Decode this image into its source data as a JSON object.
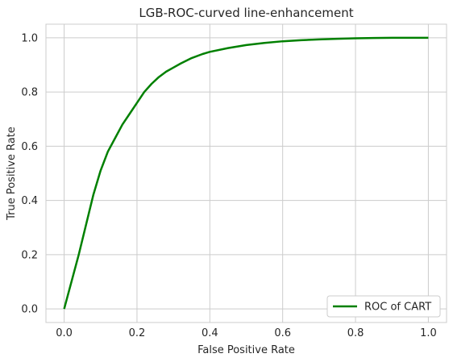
{
  "chart_data": {
    "type": "line",
    "title": "LGB-ROC-curved line-enhancement",
    "xlabel": "False Positive Rate",
    "ylabel": "True Positive Rate",
    "xlim": [
      -0.05,
      1.05
    ],
    "ylim": [
      -0.05,
      1.05
    ],
    "xticks": [
      "0.0",
      "0.2",
      "0.4",
      "0.6",
      "0.8",
      "1.0"
    ],
    "yticks": [
      "0.0",
      "0.2",
      "0.4",
      "0.6",
      "0.8",
      "1.0"
    ],
    "grid": true,
    "legend_position": "lower right",
    "series": [
      {
        "name": "ROC of CART",
        "color": "#008000",
        "x": [
          0.0,
          0.02,
          0.04,
          0.06,
          0.08,
          0.1,
          0.12,
          0.14,
          0.16,
          0.18,
          0.2,
          0.22,
          0.24,
          0.26,
          0.28,
          0.3,
          0.32,
          0.35,
          0.38,
          0.4,
          0.45,
          0.5,
          0.55,
          0.6,
          0.65,
          0.7,
          0.75,
          0.8,
          0.85,
          0.9,
          0.95,
          1.0
        ],
        "y": [
          0.0,
          0.1,
          0.2,
          0.31,
          0.42,
          0.51,
          0.58,
          0.63,
          0.68,
          0.72,
          0.76,
          0.8,
          0.83,
          0.855,
          0.875,
          0.89,
          0.905,
          0.925,
          0.94,
          0.948,
          0.962,
          0.973,
          0.981,
          0.987,
          0.991,
          0.994,
          0.996,
          0.998,
          0.999,
          1.0,
          1.0,
          1.0
        ]
      }
    ]
  }
}
